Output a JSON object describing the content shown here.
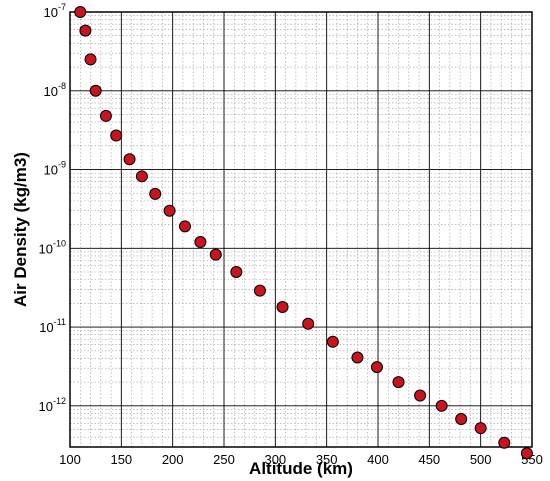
{
  "chart_data": {
    "type": "scatter",
    "xlabel": "Altitude (km)",
    "ylabel": "Air Density (kg/m3)",
    "xlim": [
      100,
      550
    ],
    "ylim": [
      3e-13,
      1e-07
    ],
    "yscale": "log",
    "grid": true,
    "grid_minor": true,
    "legend": "none",
    "x_ticks": [
      100,
      150,
      200,
      250,
      300,
      350,
      400,
      450,
      500,
      550
    ],
    "x_tick_labels": [
      "100",
      "150",
      "200",
      "250",
      "300",
      "350",
      "400",
      "450",
      "500",
      "550"
    ],
    "y_ticks": [
      {
        "value": 1e-07,
        "base": "10",
        "exp": "-7"
      },
      {
        "value": 1e-08,
        "base": "10",
        "exp": "-8"
      },
      {
        "value": 1e-09,
        "base": "10",
        "exp": "-9"
      },
      {
        "value": 1e-10,
        "base": "10",
        "exp": "-10"
      },
      {
        "value": 1e-11,
        "base": "10",
        "exp": "-11"
      },
      {
        "value": 1e-12,
        "base": "10",
        "exp": "-12"
      }
    ],
    "marker_color": "#c8141e",
    "marker_edge": "#000000",
    "points": [
      {
        "x": 110,
        "y": 1e-07
      },
      {
        "x": 115,
        "y": 5.8e-08
      },
      {
        "x": 120,
        "y": 2.5e-08
      },
      {
        "x": 125,
        "y": 1e-08
      },
      {
        "x": 135,
        "y": 4.8e-09
      },
      {
        "x": 145,
        "y": 2.7e-09
      },
      {
        "x": 158,
        "y": 1.35e-09
      },
      {
        "x": 170,
        "y": 8.2e-10
      },
      {
        "x": 183,
        "y": 4.9e-10
      },
      {
        "x": 197,
        "y": 3e-10
      },
      {
        "x": 212,
        "y": 1.9e-10
      },
      {
        "x": 227,
        "y": 1.2e-10
      },
      {
        "x": 242,
        "y": 8.3e-11
      },
      {
        "x": 262,
        "y": 5e-11
      },
      {
        "x": 285,
        "y": 2.9e-11
      },
      {
        "x": 307,
        "y": 1.8e-11
      },
      {
        "x": 332,
        "y": 1.1e-11
      },
      {
        "x": 356,
        "y": 6.5e-12
      },
      {
        "x": 380,
        "y": 4.1e-12
      },
      {
        "x": 399,
        "y": 3.1e-12
      },
      {
        "x": 420,
        "y": 2e-12
      },
      {
        "x": 441,
        "y": 1.35e-12
      },
      {
        "x": 462,
        "y": 1e-12
      },
      {
        "x": 481,
        "y": 6.8e-13
      },
      {
        "x": 500,
        "y": 5.2e-13
      },
      {
        "x": 523,
        "y": 3.4e-13
      },
      {
        "x": 545,
        "y": 2.5e-13
      }
    ]
  }
}
